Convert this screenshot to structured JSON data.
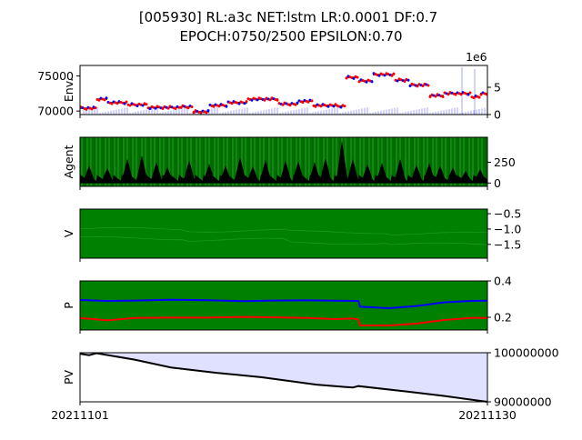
{
  "title": {
    "line1": "[005930] RL:a3c NET:lstm LR:0.0001 DF:0.7",
    "line2": "EPOCH:0750/2500 EPSILON:0.70"
  },
  "colors": {
    "green": "#008000",
    "blue": "#0000ff",
    "red": "#ff0000",
    "black": "#000000",
    "pv_fill": "#e0e0ff"
  },
  "chart_data": [
    {
      "type": "line",
      "panel": "env",
      "ylabel": "Env.",
      "ylim": [
        69500,
        76500
      ],
      "yticks": [
        70000,
        75000
      ],
      "ytick_labels": [
        "70000",
        "75000"
      ],
      "right_axis": {
        "offset_label": "1e6",
        "ylim": [
          0,
          9
        ],
        "yticks": [
          0,
          5
        ],
        "ytick_labels": [
          "0",
          "5"
        ]
      },
      "segments": [
        {
          "x0": 0,
          "x1": 18,
          "y": 70400
        },
        {
          "x0": 18,
          "x1": 30,
          "y": 71700
        },
        {
          "x0": 30,
          "x1": 52,
          "y": 71200
        },
        {
          "x0": 52,
          "x1": 74,
          "y": 70900
        },
        {
          "x0": 74,
          "x1": 110,
          "y": 70500
        },
        {
          "x0": 110,
          "x1": 124,
          "y": 70600
        },
        {
          "x0": 124,
          "x1": 142,
          "y": 69900
        },
        {
          "x0": 142,
          "x1": 162,
          "y": 70800
        },
        {
          "x0": 162,
          "x1": 184,
          "y": 71200
        },
        {
          "x0": 184,
          "x1": 218,
          "y": 71700
        },
        {
          "x0": 218,
          "x1": 240,
          "y": 71000
        },
        {
          "x0": 240,
          "x1": 256,
          "y": 71400
        },
        {
          "x0": 256,
          "x1": 282,
          "y": 70800
        },
        {
          "x0": 282,
          "x1": 292,
          "y": 70700
        },
        {
          "x0": 292,
          "x1": 306,
          "y": 74800
        },
        {
          "x0": 306,
          "x1": 322,
          "y": 74300
        },
        {
          "x0": 322,
          "x1": 346,
          "y": 75200
        },
        {
          "x0": 346,
          "x1": 362,
          "y": 74400
        },
        {
          "x0": 362,
          "x1": 384,
          "y": 73700
        },
        {
          "x0": 384,
          "x1": 400,
          "y": 72200
        },
        {
          "x0": 400,
          "x1": 430,
          "y": 72500
        },
        {
          "x0": 430,
          "x1": 440,
          "y": 72000
        },
        {
          "x0": 440,
          "x1": 448,
          "y": 72500
        }
      ]
    },
    {
      "type": "line",
      "panel": "agent",
      "ylabel": "Agent",
      "ylim": [
        -40,
        550
      ],
      "yticks": [
        0,
        250
      ],
      "ytick_labels": [
        "0",
        "250"
      ],
      "peaks": [
        {
          "x": 10,
          "y": 180
        },
        {
          "x": 30,
          "y": 150
        },
        {
          "x": 52,
          "y": 260
        },
        {
          "x": 68,
          "y": 300
        },
        {
          "x": 84,
          "y": 220
        },
        {
          "x": 96,
          "y": 160
        },
        {
          "x": 120,
          "y": 240
        },
        {
          "x": 142,
          "y": 200
        },
        {
          "x": 160,
          "y": 180
        },
        {
          "x": 176,
          "y": 280
        },
        {
          "x": 190,
          "y": 170
        },
        {
          "x": 204,
          "y": 250
        },
        {
          "x": 226,
          "y": 240
        },
        {
          "x": 240,
          "y": 230
        },
        {
          "x": 258,
          "y": 220
        },
        {
          "x": 270,
          "y": 270
        },
        {
          "x": 288,
          "y": 470
        },
        {
          "x": 300,
          "y": 260
        },
        {
          "x": 316,
          "y": 200
        },
        {
          "x": 332,
          "y": 210
        },
        {
          "x": 352,
          "y": 260
        },
        {
          "x": 370,
          "y": 190
        },
        {
          "x": 384,
          "y": 210
        },
        {
          "x": 396,
          "y": 180
        },
        {
          "x": 410,
          "y": 160
        },
        {
          "x": 424,
          "y": 120
        },
        {
          "x": 440,
          "y": 140
        }
      ]
    },
    {
      "type": "line",
      "panel": "v",
      "ylabel": "V",
      "ylim": [
        -1.95,
        -0.35
      ],
      "yticks": [
        -0.5,
        -1.0,
        -1.5
      ],
      "ytick_labels": [
        "−0.5",
        "−1.0",
        "−1.5"
      ]
    },
    {
      "type": "line",
      "panel": "p",
      "ylabel": "P",
      "ylim": [
        0.13,
        0.4
      ],
      "yticks": [
        0.2,
        0.4
      ],
      "ytick_labels": [
        "0.2",
        "0.4"
      ],
      "series": [
        {
          "color": "blue",
          "points": [
            [
              0,
              0.295
            ],
            [
              30,
              0.29
            ],
            [
              60,
              0.292
            ],
            [
              100,
              0.296
            ],
            [
              140,
              0.294
            ],
            [
              180,
              0.289
            ],
            [
              210,
              0.292
            ],
            [
              250,
              0.293
            ],
            [
              280,
              0.291
            ],
            [
              306,
              0.29
            ],
            [
              308,
              0.258
            ],
            [
              340,
              0.25
            ],
            [
              370,
              0.262
            ],
            [
              400,
              0.282
            ],
            [
              430,
              0.29
            ],
            [
              448,
              0.291
            ]
          ]
        },
        {
          "color": "red",
          "points": [
            [
              0,
              0.196
            ],
            [
              30,
              0.183
            ],
            [
              60,
              0.196
            ],
            [
              100,
              0.198
            ],
            [
              140,
              0.198
            ],
            [
              180,
              0.202
            ],
            [
              210,
              0.2
            ],
            [
              250,
              0.196
            ],
            [
              280,
              0.19
            ],
            [
              300,
              0.193
            ],
            [
              306,
              0.188
            ],
            [
              308,
              0.155
            ],
            [
              340,
              0.155
            ],
            [
              370,
              0.165
            ],
            [
              400,
              0.185
            ],
            [
              430,
              0.196
            ],
            [
              448,
              0.196
            ]
          ]
        }
      ]
    },
    {
      "type": "area",
      "panel": "pv",
      "ylabel": "PV",
      "ylim": [
        90000000,
        100000000
      ],
      "yticks": [
        100000000,
        90000000
      ],
      "ytick_labels": [
        "100000000",
        "90000000"
      ],
      "baseline": 100000000,
      "points": [
        [
          0,
          99800000
        ],
        [
          10,
          99500000
        ],
        [
          18,
          99900000
        ],
        [
          60,
          98600000
        ],
        [
          100,
          97000000
        ],
        [
          150,
          95900000
        ],
        [
          200,
          95000000
        ],
        [
          260,
          93500000
        ],
        [
          300,
          92900000
        ],
        [
          306,
          93200000
        ],
        [
          360,
          92100000
        ],
        [
          400,
          91200000
        ],
        [
          448,
          90000000
        ]
      ]
    }
  ],
  "xaxis": {
    "tick_labels": [
      "20211101",
      "20211130"
    ]
  }
}
